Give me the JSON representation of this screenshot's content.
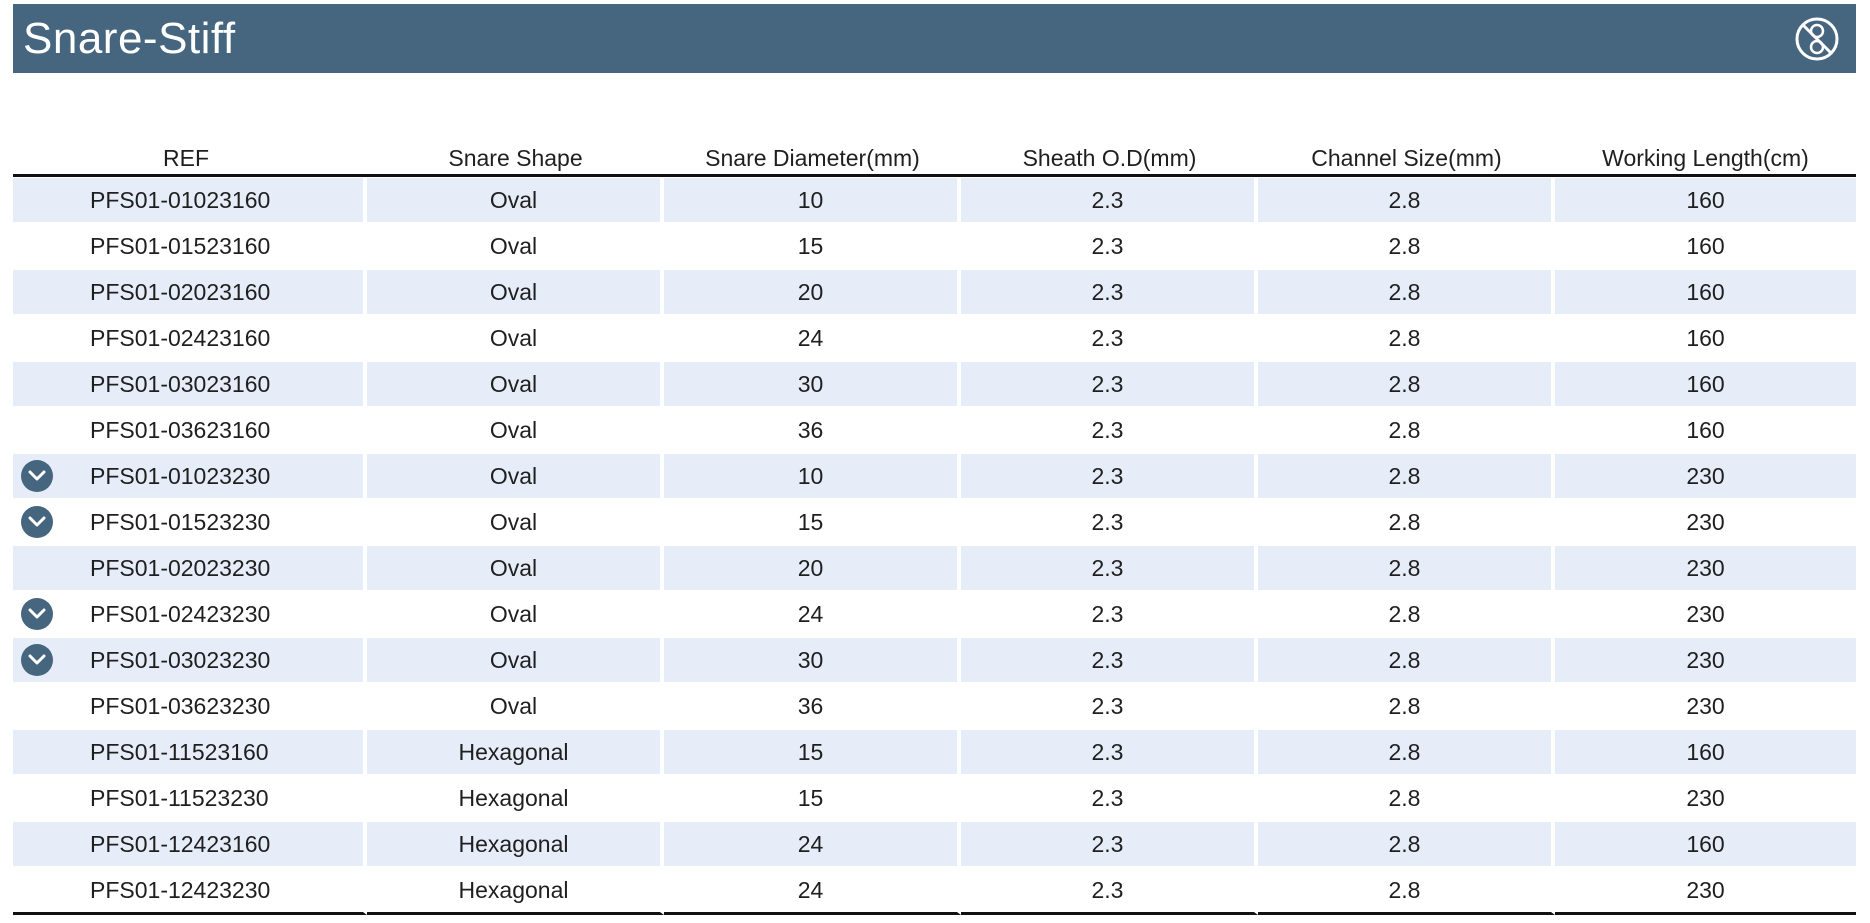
{
  "header": {
    "title": "Snare-Stiff",
    "icon": "not-resterilize-icon"
  },
  "table": {
    "columns": [
      "REF",
      "Snare Shape",
      "Snare Diameter(mm)",
      "Sheath O.D(mm)",
      "Channel Size(mm)",
      "Working Length(cm)"
    ],
    "rows": [
      {
        "marker": false,
        "ref": "PFS01-01023160",
        "shape": "Oval",
        "diameter": "10",
        "sheath": "2.3",
        "channel": "2.8",
        "length": "160"
      },
      {
        "marker": false,
        "ref": "PFS01-01523160",
        "shape": "Oval",
        "diameter": "15",
        "sheath": "2.3",
        "channel": "2.8",
        "length": "160"
      },
      {
        "marker": false,
        "ref": "PFS01-02023160",
        "shape": "Oval",
        "diameter": "20",
        "sheath": "2.3",
        "channel": "2.8",
        "length": "160"
      },
      {
        "marker": false,
        "ref": "PFS01-02423160",
        "shape": "Oval",
        "diameter": "24",
        "sheath": "2.3",
        "channel": "2.8",
        "length": "160"
      },
      {
        "marker": false,
        "ref": "PFS01-03023160",
        "shape": "Oval",
        "diameter": "30",
        "sheath": "2.3",
        "channel": "2.8",
        "length": "160"
      },
      {
        "marker": false,
        "ref": "PFS01-03623160",
        "shape": "Oval",
        "diameter": "36",
        "sheath": "2.3",
        "channel": "2.8",
        "length": "160"
      },
      {
        "marker": true,
        "ref": "PFS01-01023230",
        "shape": "Oval",
        "diameter": "10",
        "sheath": "2.3",
        "channel": "2.8",
        "length": "230"
      },
      {
        "marker": true,
        "ref": "PFS01-01523230",
        "shape": "Oval",
        "diameter": "15",
        "sheath": "2.3",
        "channel": "2.8",
        "length": "230"
      },
      {
        "marker": false,
        "ref": "PFS01-02023230",
        "shape": "Oval",
        "diameter": "20",
        "sheath": "2.3",
        "channel": "2.8",
        "length": "230"
      },
      {
        "marker": true,
        "ref": "PFS01-02423230",
        "shape": "Oval",
        "diameter": "24",
        "sheath": "2.3",
        "channel": "2.8",
        "length": "230"
      },
      {
        "marker": true,
        "ref": "PFS01-03023230",
        "shape": "Oval",
        "diameter": "30",
        "sheath": "2.3",
        "channel": "2.8",
        "length": "230"
      },
      {
        "marker": false,
        "ref": "PFS01-03623230",
        "shape": "Oval",
        "diameter": "36",
        "sheath": "2.3",
        "channel": "2.8",
        "length": "230"
      },
      {
        "marker": false,
        "ref": "PFS01-11523160",
        "shape": "Hexagonal",
        "diameter": "15",
        "sheath": "2.3",
        "channel": "2.8",
        "length": "160"
      },
      {
        "marker": false,
        "ref": "PFS01-11523230",
        "shape": "Hexagonal",
        "diameter": "15",
        "sheath": "2.3",
        "channel": "2.8",
        "length": "230"
      },
      {
        "marker": false,
        "ref": "PFS01-12423160",
        "shape": "Hexagonal",
        "diameter": "24",
        "sheath": "2.3",
        "channel": "2.8",
        "length": "160"
      },
      {
        "marker": false,
        "ref": "PFS01-12423230",
        "shape": "Hexagonal",
        "diameter": "24",
        "sheath": "2.3",
        "channel": "2.8",
        "length": "230"
      }
    ]
  },
  "colors": {
    "header_bg": "#46657f",
    "row_shade": "#e6ecf8",
    "marker": "#46657f"
  }
}
